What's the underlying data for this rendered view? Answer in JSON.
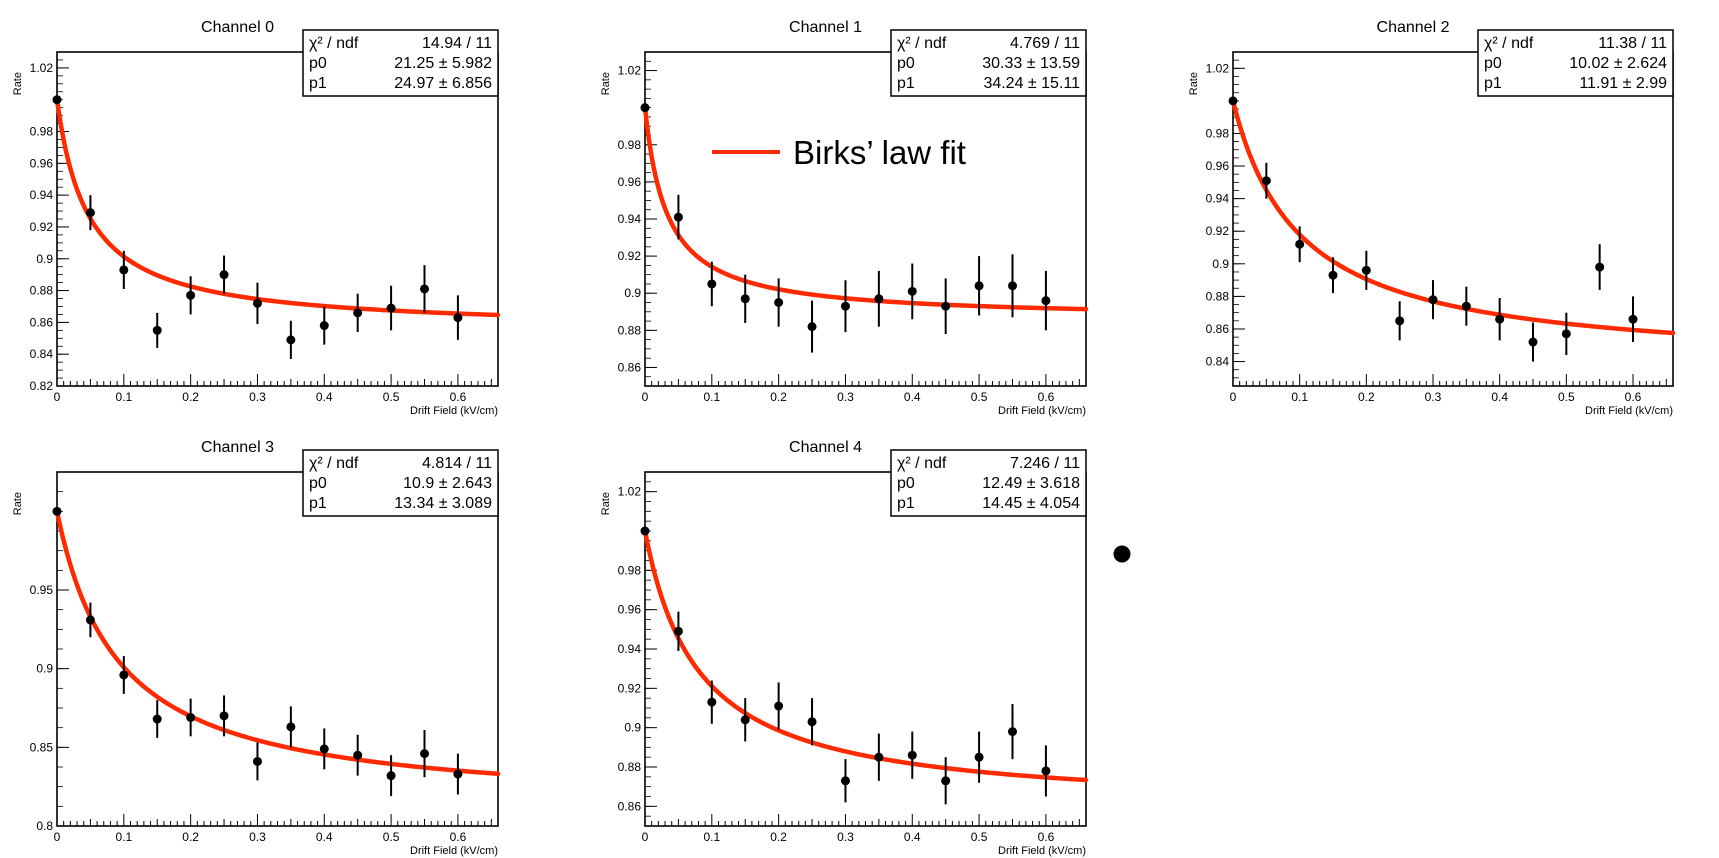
{
  "legend": {
    "label": "Birks’ law fit",
    "line_color": "#ff2a00"
  },
  "colors": {
    "fit": "#ff2a00",
    "points": "#000000",
    "axes": "#000000"
  },
  "chart_data": [
    {
      "type": "scatter",
      "title": "Channel 0",
      "xlabel": "Drift Field (kV/cm)",
      "ylabel": "Rate",
      "xlim": [
        0,
        0.66
      ],
      "ylim": [
        0.82,
        1.03
      ],
      "x_ticks": [
        0,
        0.1,
        0.2,
        0.3,
        0.4,
        0.5,
        0.6
      ],
      "y_ticks": [
        0.82,
        0.84,
        0.86,
        0.88,
        0.9,
        0.92,
        0.94,
        0.96,
        0.98,
        1.02
      ],
      "stats": {
        "chi2_label": "χ² / ndf",
        "chi2": "14.94 / 11",
        "p0_label": "p0",
        "p0": "21.25 ± 5.982",
        "p1_label": "p1",
        "p1": "24.97 ± 6.856"
      },
      "fit_asymptote": 0.855,
      "x": [
        0,
        0.05,
        0.1,
        0.15,
        0.2,
        0.25,
        0.3,
        0.35,
        0.4,
        0.45,
        0.5,
        0.55,
        0.6
      ],
      "y": [
        1.0,
        0.929,
        0.893,
        0.855,
        0.877,
        0.89,
        0.872,
        0.849,
        0.858,
        0.866,
        0.869,
        0.881,
        0.863
      ],
      "yerr": [
        0.0,
        0.011,
        0.012,
        0.011,
        0.012,
        0.012,
        0.013,
        0.012,
        0.012,
        0.012,
        0.014,
        0.015,
        0.014
      ]
    },
    {
      "type": "scatter",
      "title": "Channel 1",
      "xlabel": "Drift Field (kV/cm)",
      "ylabel": "Rate",
      "xlim": [
        0,
        0.66
      ],
      "ylim": [
        0.85,
        1.03
      ],
      "x_ticks": [
        0,
        0.1,
        0.2,
        0.3,
        0.4,
        0.5,
        0.6
      ],
      "y_ticks": [
        0.86,
        0.88,
        0.9,
        0.92,
        0.94,
        0.96,
        0.98,
        1.02
      ],
      "stats": {
        "chi2_label": "χ² / ndf",
        "chi2": "4.769 / 11",
        "p0_label": "p0",
        "p0": "30.33 ± 13.59",
        "p1_label": "p1",
        "p1": "34.24 ± 15.11"
      },
      "fit_asymptote": 0.886,
      "x": [
        0,
        0.05,
        0.1,
        0.15,
        0.2,
        0.25,
        0.3,
        0.35,
        0.4,
        0.45,
        0.5,
        0.55,
        0.6
      ],
      "y": [
        1.0,
        0.941,
        0.905,
        0.897,
        0.895,
        0.882,
        0.893,
        0.897,
        0.901,
        0.893,
        0.904,
        0.904,
        0.896
      ],
      "yerr": [
        0.0,
        0.012,
        0.012,
        0.013,
        0.013,
        0.014,
        0.014,
        0.015,
        0.015,
        0.015,
        0.016,
        0.017,
        0.016
      ]
    },
    {
      "type": "scatter",
      "title": "Channel 2",
      "xlabel": "Drift Field (kV/cm)",
      "ylabel": "Rate",
      "xlim": [
        0,
        0.66
      ],
      "ylim": [
        0.825,
        1.03
      ],
      "x_ticks": [
        0,
        0.1,
        0.2,
        0.3,
        0.4,
        0.5,
        0.6
      ],
      "y_ticks": [
        0.84,
        0.86,
        0.88,
        0.9,
        0.92,
        0.94,
        0.96,
        0.98,
        1.02
      ],
      "stats": {
        "chi2_label": "χ² / ndf",
        "chi2": "11.38 / 11",
        "p0_label": "p0",
        "p0": "10.02 ± 2.624",
        "p1_label": "p1",
        "p1": "11.91 ±  2.99"
      },
      "fit_asymptote": 0.836,
      "x": [
        0,
        0.05,
        0.1,
        0.15,
        0.2,
        0.25,
        0.3,
        0.35,
        0.4,
        0.45,
        0.5,
        0.55,
        0.6
      ],
      "y": [
        1.0,
        0.951,
        0.912,
        0.893,
        0.896,
        0.865,
        0.878,
        0.874,
        0.866,
        0.852,
        0.857,
        0.898,
        0.866
      ],
      "yerr": [
        0.0,
        0.011,
        0.011,
        0.011,
        0.012,
        0.012,
        0.012,
        0.012,
        0.013,
        0.012,
        0.013,
        0.014,
        0.014
      ]
    },
    {
      "type": "scatter",
      "title": "Channel 3",
      "xlabel": "Drift Field (kV/cm)",
      "ylabel": "Rate",
      "xlim": [
        0,
        0.66
      ],
      "ylim": [
        0.8,
        1.025
      ],
      "x_ticks": [
        0,
        0.1,
        0.2,
        0.3,
        0.4,
        0.5,
        0.6
      ],
      "y_ticks": [
        0.8,
        0.85,
        0.9,
        0.95
      ],
      "stats": {
        "chi2_label": "χ² / ndf",
        "chi2": "4.814 / 11",
        "p0_label": "p0",
        "p0": "10.9 ± 2.643",
        "p1_label": "p1",
        "p1": "13.34 ± 3.089"
      },
      "fit_asymptote": 0.81,
      "x": [
        0,
        0.05,
        0.1,
        0.15,
        0.2,
        0.25,
        0.3,
        0.35,
        0.4,
        0.45,
        0.5,
        0.55,
        0.6
      ],
      "y": [
        1.0,
        0.931,
        0.896,
        0.868,
        0.869,
        0.87,
        0.841,
        0.863,
        0.849,
        0.845,
        0.832,
        0.846,
        0.833
      ],
      "yerr": [
        0.0,
        0.011,
        0.012,
        0.012,
        0.012,
        0.013,
        0.012,
        0.013,
        0.013,
        0.013,
        0.013,
        0.015,
        0.013
      ]
    },
    {
      "type": "scatter",
      "title": "Channel 4",
      "xlabel": "Drift Field (kV/cm)",
      "ylabel": "Rate",
      "xlim": [
        0,
        0.66
      ],
      "ylim": [
        0.85,
        1.03
      ],
      "x_ticks": [
        0,
        0.1,
        0.2,
        0.3,
        0.4,
        0.5,
        0.6
      ],
      "y_ticks": [
        0.86,
        0.88,
        0.9,
        0.92,
        0.94,
        0.96,
        0.98,
        1.02
      ],
      "stats": {
        "chi2_label": "χ² / ndf",
        "chi2": "7.246 / 11",
        "p0_label": "p0",
        "p0": "12.49 ± 3.618",
        "p1_label": "p1",
        "p1": "14.45 ± 4.054"
      },
      "fit_asymptote": 0.858,
      "x": [
        0,
        0.05,
        0.1,
        0.15,
        0.2,
        0.25,
        0.3,
        0.35,
        0.4,
        0.45,
        0.5,
        0.55,
        0.6
      ],
      "y": [
        1.0,
        0.949,
        0.913,
        0.904,
        0.911,
        0.903,
        0.873,
        0.885,
        0.886,
        0.873,
        0.885,
        0.898,
        0.878
      ],
      "yerr": [
        0.0,
        0.01,
        0.011,
        0.011,
        0.012,
        0.012,
        0.011,
        0.012,
        0.012,
        0.012,
        0.013,
        0.014,
        0.013
      ]
    }
  ]
}
